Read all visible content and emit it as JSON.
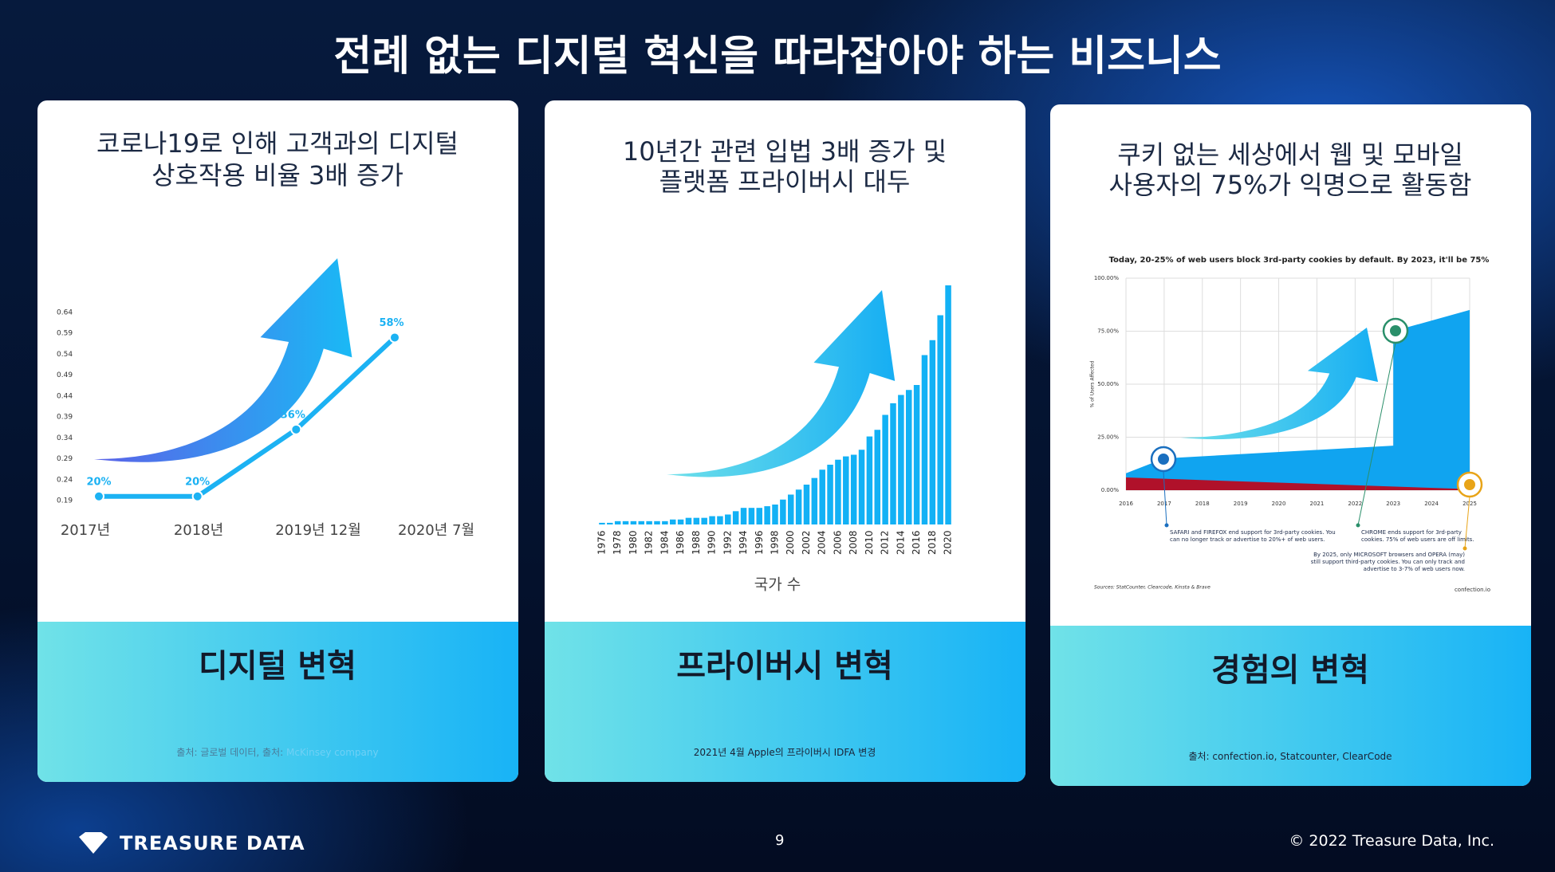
{
  "header": {
    "title": "전례 없는 디지털 혁신을 따라잡아야 하는 비즈니스"
  },
  "cards": [
    {
      "title_lines": [
        "코로나19로 인해 고객과의 디지털",
        "상호작용 비율 3배 증가"
      ],
      "heading": "디지털 변혁",
      "source": "출처: 글로벌 데이터, 출처: ",
      "source_link": "McKinsey company",
      "chart": {
        "type": "line",
        "categories": [
          "2017년",
          "2018년",
          "2019년 12월",
          "2020년 7월"
        ],
        "values": [
          0.2,
          0.2,
          0.36,
          0.58
        ],
        "value_labels": [
          "20%",
          "20%",
          "36%",
          "58%"
        ],
        "ylim": [
          0.19,
          0.64
        ],
        "yticks": [
          0.19,
          0.24,
          0.29,
          0.34,
          0.39,
          0.44,
          0.49,
          0.54,
          0.59,
          0.64
        ],
        "color": "#1cb2f3"
      }
    },
    {
      "title_lines": [
        "10년간 관련 입법 3배 증가 및",
        "플랫폼 프라이버시 대두"
      ],
      "heading": "프라이버시 변혁",
      "source": "2021년 4월 Apple의 프라이버시 IDFA 변경",
      "chart": {
        "type": "bar",
        "x_label": "국가 수",
        "categories": [
          "1976",
          null,
          "1978",
          null,
          "1980",
          null,
          "1982",
          null,
          "1984",
          null,
          "1986",
          null,
          "1988",
          null,
          "1990",
          null,
          "1992",
          null,
          "1994",
          null,
          "1996",
          null,
          "1998",
          null,
          "2000",
          null,
          "2002",
          null,
          "2004",
          null,
          "2006",
          null,
          "2008",
          null,
          "2010",
          null,
          "2012",
          null,
          "2014",
          null,
          "2016",
          null,
          "2018",
          null,
          "2020"
        ],
        "values": [
          1,
          1,
          2,
          2,
          2,
          2,
          2,
          2,
          2,
          3,
          3,
          4,
          4,
          4,
          5,
          5,
          6,
          8,
          10,
          10,
          10,
          11,
          12,
          15,
          18,
          21,
          24,
          28,
          33,
          36,
          39,
          41,
          42,
          45,
          53,
          57,
          66,
          73,
          78,
          81,
          84,
          102,
          111,
          126,
          144
        ],
        "color": "#12b1f5"
      }
    },
    {
      "title_lines": [
        "쿠키 없는 세상에서 웹 및 모바일",
        "사용자의 75%가 익명으로 활동함"
      ],
      "heading": "경험의 변혁",
      "source": "출처: confection.io, Statcounter, ClearCode",
      "chart": {
        "type": "area",
        "title": "Today, 20-25% of web users block 3rd-party cookies by default. By 2023, it'll be 75%",
        "y_label": "% of Users Affected",
        "ylim": [
          0,
          100
        ],
        "yticks": [
          {
            "value": 0,
            "label": "0.00%"
          },
          {
            "value": 25,
            "label": "25.00%"
          },
          {
            "value": 50,
            "label": "50.00%"
          },
          {
            "value": 75,
            "label": "75.00%"
          },
          {
            "value": 100,
            "label": "100.00%"
          }
        ],
        "xlim": [
          2016,
          2025
        ],
        "xticks": [
          2016,
          2017,
          2018,
          2019,
          2020,
          2021,
          2022,
          2023,
          2024,
          2025
        ],
        "series": [
          {
            "color": "#10a4f0",
            "x": [
              2016,
              2017,
              2023,
              2023,
              2025
            ],
            "values": [
              8,
              15,
              21,
              75,
              85
            ]
          },
          {
            "color": "#b0112a",
            "x": [
              2016,
              2025
            ],
            "values": [
              6,
              0.5
            ]
          }
        ],
        "annotations": [
          {
            "lines": [
              "SAFARI and FIREFOX end support for 3rd-party cookies. You",
              "can no longer track or advertise to 20%+ of web users."
            ]
          },
          {
            "lines": [
              "CHROME ends support for 3rd-party",
              "cookies. 75% of web users are off limits."
            ]
          },
          {
            "lines": [
              "By 2025, only MICROSOFT browsers and OPERA (may)",
              "still support third-party cookies. You can only track and",
              "advertise to 3-7% of web users now."
            ]
          }
        ],
        "sources": "Sources: StatCounter, Clearcode, Kinsta & Brave",
        "brand": "confection.io"
      }
    }
  ],
  "footer": {
    "brand": "TREASURE DATA",
    "page": "9",
    "copyright": "© 2022 Treasure Data, Inc."
  }
}
